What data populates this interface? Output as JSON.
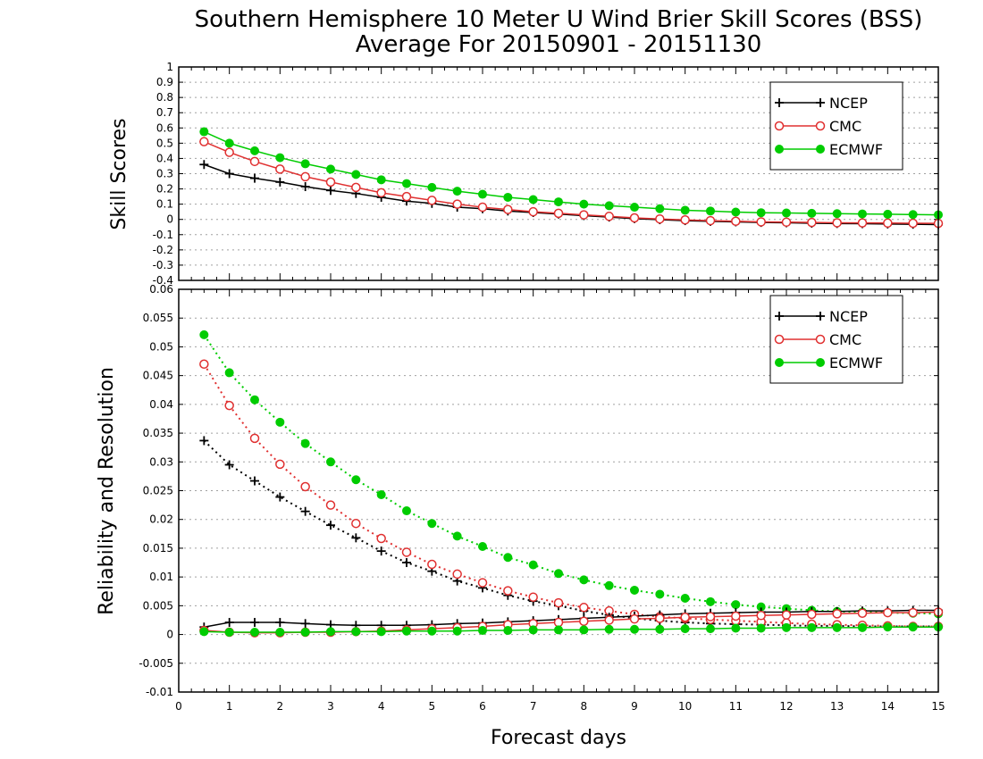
{
  "title_line1": "Southern Hemisphere 10 Meter U Wind Brier Skill Scores (BSS)",
  "title_line2": "Average For 20150901 - 20151130",
  "xlabel": "Forecast days",
  "colors": {
    "NCEP": "#000000",
    "CMC": "#e03030",
    "ECMWF": "#00cc00",
    "grid": "#a0a0a0"
  },
  "chart_data": [
    {
      "type": "line",
      "panel": "top",
      "ylabel": "Skill Scores",
      "xlim": [
        0,
        15
      ],
      "ylim": [
        -0.4,
        1
      ],
      "x_ticks": [
        0,
        1,
        2,
        3,
        4,
        5,
        6,
        7,
        8,
        9,
        10,
        11,
        12,
        13,
        14,
        15
      ],
      "y_ticks": [
        -0.4,
        -0.3,
        -0.2,
        -0.1,
        0,
        0.1,
        0.2,
        0.3,
        0.4,
        0.5,
        0.6,
        0.7,
        0.8,
        0.9,
        1
      ],
      "y_tick_labels": [
        "-0.4",
        "-0.3",
        "-0.2",
        "-0.1",
        "0",
        "0.1",
        "0.2",
        "0.3",
        "0.4",
        "0.5",
        "0.6",
        "0.7",
        "0.8",
        "0.9",
        "1"
      ],
      "grid": true,
      "legend": "top-right",
      "x": [
        0.5,
        1,
        1.5,
        2,
        2.5,
        3,
        3.5,
        4,
        4.5,
        5,
        5.5,
        6,
        6.5,
        7,
        7.5,
        8,
        8.5,
        9,
        9.5,
        10,
        10.5,
        11,
        11.5,
        12,
        12.5,
        13,
        13.5,
        14,
        14.5,
        15
      ],
      "series": [
        {
          "name": "NCEP",
          "marker": "plus",
          "style": "solid",
          "values": [
            0.36,
            0.3,
            0.27,
            0.245,
            0.215,
            0.19,
            0.17,
            0.145,
            0.12,
            0.105,
            0.08,
            0.07,
            0.055,
            0.045,
            0.035,
            0.025,
            0.015,
            0.005,
            -0.002,
            -0.008,
            -0.013,
            -0.016,
            -0.02,
            -0.022,
            -0.025,
            -0.027,
            -0.028,
            -0.03,
            -0.032,
            -0.034
          ]
        },
        {
          "name": "CMC",
          "marker": "open-circle",
          "style": "solid",
          "values": [
            0.51,
            0.44,
            0.38,
            0.33,
            0.28,
            0.245,
            0.21,
            0.175,
            0.15,
            0.125,
            0.1,
            0.08,
            0.065,
            0.05,
            0.04,
            0.03,
            0.02,
            0.01,
            0.003,
            -0.003,
            -0.008,
            -0.012,
            -0.016,
            -0.018,
            -0.02,
            -0.022,
            -0.023,
            -0.024,
            -0.025,
            -0.026
          ]
        },
        {
          "name": "ECMWF",
          "marker": "filled-circle",
          "style": "solid",
          "values": [
            0.575,
            0.5,
            0.45,
            0.405,
            0.365,
            0.33,
            0.295,
            0.26,
            0.235,
            0.21,
            0.185,
            0.165,
            0.145,
            0.13,
            0.115,
            0.1,
            0.09,
            0.08,
            0.07,
            0.06,
            0.055,
            0.048,
            0.044,
            0.042,
            0.04,
            0.038,
            0.036,
            0.034,
            0.032,
            0.03
          ]
        }
      ]
    },
    {
      "type": "line",
      "panel": "bottom",
      "ylabel": "Reliability and Resolution",
      "xlim": [
        0,
        15
      ],
      "ylim": [
        -0.01,
        0.06
      ],
      "x_ticks": [
        0,
        1,
        2,
        3,
        4,
        5,
        6,
        7,
        8,
        9,
        10,
        11,
        12,
        13,
        14,
        15
      ],
      "y_ticks": [
        -0.01,
        -0.005,
        0,
        0.005,
        0.01,
        0.015,
        0.02,
        0.025,
        0.03,
        0.035,
        0.04,
        0.045,
        0.05,
        0.055,
        0.06
      ],
      "y_tick_labels": [
        "-0.01",
        "-0.005",
        "0",
        "0.005",
        "0.01",
        "0.015",
        "0.02",
        "0.025",
        "0.03",
        "0.035",
        "0.04",
        "0.045",
        "0.05",
        "0.055",
        "0.06"
      ],
      "grid": true,
      "legend": "top-right",
      "x": [
        0.5,
        1,
        1.5,
        2,
        2.5,
        3,
        3.5,
        4,
        4.5,
        5,
        5.5,
        6,
        6.5,
        7,
        7.5,
        8,
        8.5,
        9,
        9.5,
        10,
        10.5,
        11,
        11.5,
        12,
        12.5,
        13,
        13.5,
        14,
        14.5,
        15
      ],
      "series": [
        {
          "name": "NCEP",
          "marker": "plus",
          "style": "dotted",
          "values": [
            0.0337,
            0.0295,
            0.0267,
            0.0239,
            0.0214,
            0.019,
            0.0168,
            0.0145,
            0.0125,
            0.011,
            0.0093,
            0.0081,
            0.0068,
            0.0058,
            0.005,
            0.0041,
            0.0034,
            0.0028,
            0.0024,
            0.0021,
            0.0019,
            0.0018,
            0.0017,
            0.0016,
            0.0015,
            0.0015,
            0.0014,
            0.0014,
            0.0014,
            0.0014
          ]
        },
        {
          "name": "CMC",
          "marker": "open-circle",
          "style": "dotted",
          "values": [
            0.047,
            0.0398,
            0.0341,
            0.0296,
            0.0257,
            0.0225,
            0.0193,
            0.0167,
            0.0143,
            0.0122,
            0.0105,
            0.009,
            0.0076,
            0.0065,
            0.0055,
            0.0047,
            0.0041,
            0.0035,
            0.0031,
            0.0028,
            0.0026,
            0.0024,
            0.0022,
            0.002,
            0.0018,
            0.0017,
            0.0016,
            0.0015,
            0.0014,
            0.0014
          ]
        },
        {
          "name": "ECMWF",
          "marker": "filled-circle",
          "style": "dotted",
          "values": [
            0.0521,
            0.0455,
            0.0408,
            0.0369,
            0.0332,
            0.03,
            0.0269,
            0.0243,
            0.0215,
            0.0193,
            0.0171,
            0.0153,
            0.0134,
            0.0121,
            0.0106,
            0.0095,
            0.0085,
            0.0077,
            0.007,
            0.0063,
            0.0057,
            0.0052,
            0.0048,
            0.0045,
            0.0042,
            0.004,
            0.0039,
            0.0038,
            0.0037,
            0.0036
          ]
        },
        {
          "name": "NCEP",
          "marker": "plus",
          "style": "solid",
          "values": [
            0.0013,
            0.0021,
            0.0021,
            0.0021,
            0.0019,
            0.0017,
            0.0016,
            0.0016,
            0.0016,
            0.0017,
            0.0019,
            0.002,
            0.0022,
            0.0024,
            0.0026,
            0.0028,
            0.003,
            0.0032,
            0.0034,
            0.0036,
            0.0037,
            0.0038,
            0.0039,
            0.0039,
            0.004,
            0.004,
            0.0041,
            0.0041,
            0.0042,
            0.0042
          ]
        },
        {
          "name": "CMC",
          "marker": "open-circle",
          "style": "solid",
          "values": [
            0.0007,
            0.0004,
            0.0003,
            0.0003,
            0.0004,
            0.0004,
            0.0005,
            0.0006,
            0.0008,
            0.001,
            0.0012,
            0.0014,
            0.0017,
            0.0019,
            0.0021,
            0.0023,
            0.0025,
            0.0027,
            0.0028,
            0.003,
            0.0031,
            0.0032,
            0.0033,
            0.0034,
            0.0035,
            0.0036,
            0.0037,
            0.0038,
            0.0038,
            0.0039
          ]
        },
        {
          "name": "ECMWF",
          "marker": "filled-circle",
          "style": "solid",
          "values": [
            0.0005,
            0.0004,
            0.0004,
            0.0004,
            0.0004,
            0.0005,
            0.0005,
            0.0005,
            0.0006,
            0.0006,
            0.0006,
            0.0007,
            0.0007,
            0.0008,
            0.0008,
            0.0008,
            0.0009,
            0.0009,
            0.0009,
            0.001,
            0.001,
            0.0011,
            0.0011,
            0.0012,
            0.0012,
            0.0012,
            0.0012,
            0.0013,
            0.0013,
            0.0013
          ]
        }
      ]
    }
  ]
}
